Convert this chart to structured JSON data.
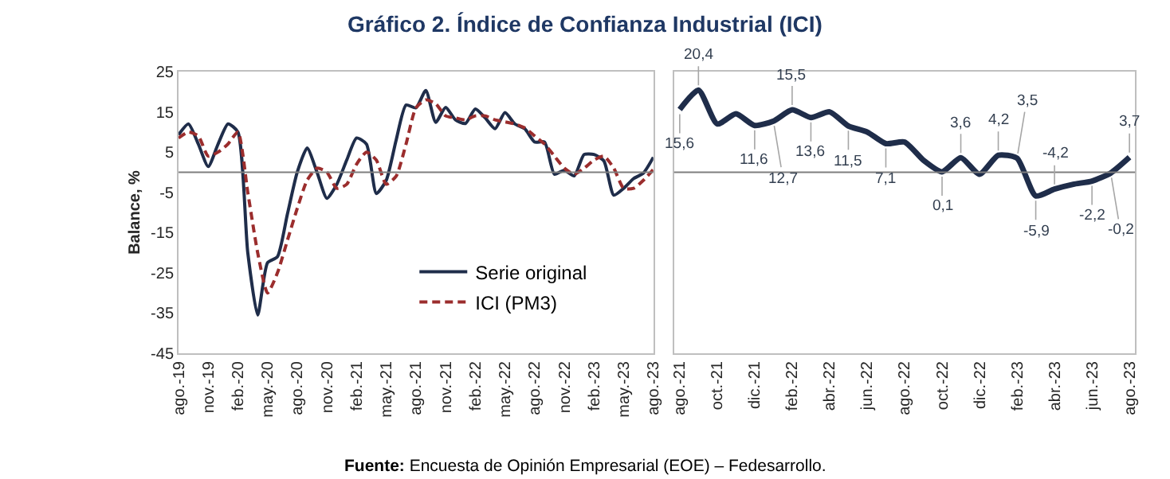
{
  "chart_data": [
    {
      "type": "line",
      "title": "Gráfico 2. Índice de Confianza Industrial (ICI)",
      "ylabel": "Balance, %",
      "categories": [
        "ago.-19",
        null,
        null,
        "nov.-19",
        null,
        null,
        "feb.-20",
        null,
        null,
        "may.-20",
        null,
        null,
        "ago.-20",
        null,
        null,
        "nov.-20",
        null,
        null,
        "feb.-21",
        null,
        null,
        "may.-21",
        null,
        null,
        "ago.-21",
        null,
        null,
        "nov.-21",
        null,
        null,
        "feb.-22",
        null,
        null,
        "may.-22",
        null,
        null,
        "ago.-22",
        null,
        null,
        "nov.-22",
        null,
        null,
        "feb.-23",
        null,
        null,
        "may.-23",
        null,
        null,
        "ago.-23"
      ],
      "series": [
        {
          "name": "Serie original",
          "color": "#1f2d4a",
          "line_style": "solid",
          "values": [
            9.3,
            12,
            7,
            1.4,
            7,
            12,
            10,
            -20,
            -35.5,
            -22.5,
            -21,
            -10.5,
            0,
            6,
            0,
            -6.5,
            -3,
            3,
            8.5,
            7,
            -5.3,
            -2,
            8,
            16.7,
            16,
            20.3,
            12.4,
            16.1,
            13,
            12.1,
            15.7,
            13.5,
            10.8,
            14.8,
            12,
            10.8,
            7.5,
            7.5,
            -0.5,
            0.5,
            -0.9,
            4.4,
            4.4,
            2.8,
            -5.7,
            -4,
            -1.6,
            -0.2,
            3.7
          ]
        },
        {
          "name": "ICI (PM3)",
          "color": "#9b2d2d",
          "line_style": "dashed",
          "values": [
            8.5,
            10,
            9,
            4,
            5,
            7,
            10,
            -5,
            -20,
            -30,
            -25,
            -17,
            -9,
            -2,
            1,
            0,
            -4,
            -3,
            2,
            5,
            3,
            -3,
            -1,
            7,
            16,
            18,
            17,
            14,
            13.5,
            13,
            14,
            14,
            13,
            12.5,
            12,
            11,
            9,
            7,
            4,
            1,
            -0.5,
            1,
            3,
            4,
            1,
            -4,
            -4,
            -2,
            0.7
          ]
        }
      ],
      "ylim": [
        -45,
        25
      ],
      "yticks": [
        -45,
        -35,
        -25,
        -15,
        -5,
        5,
        15,
        25
      ],
      "ref_lines": [
        {
          "axis": "y",
          "value": 0,
          "color": "#7f7f7f"
        }
      ],
      "legend": "bottom right",
      "annotations": [
        "Fuente: Encuesta de Opinión Empresarial (EOE) – Fedesarrollo."
      ]
    },
    {
      "type": "line",
      "categories": [
        "ago.-21",
        null,
        "oct.-21",
        null,
        "dic.-21",
        null,
        "feb.-22",
        null,
        "abr.-22",
        null,
        "jun.-22",
        null,
        "ago.-22",
        null,
        "oct.-22",
        null,
        "dic.-22",
        null,
        "feb.-23",
        null,
        "abr.-23",
        null,
        "jun.-23",
        null,
        "ago.-23"
      ],
      "values": [
        15.6,
        20.4,
        12.0,
        14.5,
        11.6,
        12.7,
        15.5,
        13.6,
        15.0,
        11.5,
        10.0,
        7.1,
        7.5,
        3.0,
        0.1,
        3.6,
        -0.5,
        4.2,
        3.5,
        -5.9,
        -4.2,
        -3.0,
        -2.2,
        -0.2,
        3.7
      ],
      "value_labels": [
        "15,6",
        "20,4",
        null,
        null,
        "11,6",
        "12,7",
        "15,5",
        "13,6",
        null,
        "11,5",
        null,
        "7,1",
        null,
        null,
        "0,1",
        "3,6",
        null,
        "4,2",
        "3,5",
        "-5,9",
        "-4,2",
        null,
        "-2,2",
        "-0,2",
        "3,7"
      ],
      "color": "#1f2d4a",
      "ylim": [
        -45,
        25
      ],
      "yticks": [
        -45,
        -35,
        -25,
        -15,
        -5,
        5,
        15,
        25
      ],
      "tick_labels": "x",
      "ref_lines": [
        {
          "axis": "y",
          "value": 0,
          "color": "#7f7f7f"
        }
      ]
    }
  ]
}
